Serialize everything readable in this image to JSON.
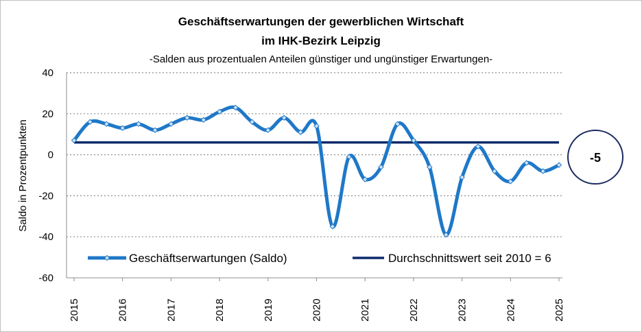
{
  "chart_data": {
    "type": "line",
    "title": "Geschäftserwartungen der gewerblichen Wirtschaft",
    "title_line2": "im IHK-Bezirk Leipzig",
    "subtitle": "-Salden aus prozentualen Anteilen günstiger und ungünstiger Erwartungen-",
    "ylabel": "Saldo in Prozentpunkten",
    "xlabel": "",
    "ylim": [
      -60,
      40
    ],
    "yticks": [
      40,
      20,
      0,
      -20,
      -40,
      -60
    ],
    "xlim": [
      2015,
      2025
    ],
    "xticks": [
      "2015",
      "2016",
      "2017",
      "2018",
      "2019",
      "2020",
      "2021",
      "2022",
      "2023",
      "2024",
      "2025"
    ],
    "grid": "horizontal dotted",
    "legend_position": "bottom",
    "series": [
      {
        "name": "Geschäftserwartungen (Saldo)",
        "color": "#1f78c8",
        "points": [
          [
            2015.0,
            7
          ],
          [
            2015.33,
            16
          ],
          [
            2015.67,
            15
          ],
          [
            2016.0,
            13
          ],
          [
            2016.33,
            15
          ],
          [
            2016.67,
            12
          ],
          [
            2017.0,
            15
          ],
          [
            2017.33,
            18
          ],
          [
            2017.67,
            17
          ],
          [
            2018.0,
            21
          ],
          [
            2018.33,
            23
          ],
          [
            2018.67,
            16
          ],
          [
            2019.0,
            12
          ],
          [
            2019.33,
            18
          ],
          [
            2019.67,
            11
          ],
          [
            2020.0,
            14
          ],
          [
            2020.33,
            -35
          ],
          [
            2020.67,
            -1
          ],
          [
            2021.0,
            -12
          ],
          [
            2021.33,
            -6
          ],
          [
            2021.67,
            15
          ],
          [
            2022.0,
            7
          ],
          [
            2022.33,
            -6
          ],
          [
            2022.67,
            -39
          ],
          [
            2023.0,
            -11
          ],
          [
            2023.33,
            4
          ],
          [
            2023.67,
            -8
          ],
          [
            2024.0,
            -13
          ],
          [
            2024.33,
            -4
          ],
          [
            2024.67,
            -8
          ],
          [
            2025.0,
            -5
          ]
        ]
      },
      {
        "name": "Durchschnittswert seit 2010 = 6",
        "color": "#0d2a6b",
        "constant": 6
      }
    ],
    "callout": "-5"
  },
  "colors": {
    "saldo": "#1f78c8",
    "average": "#0d2a6b",
    "grid": "#8c8c8c",
    "frame": "#bfbfbf"
  }
}
